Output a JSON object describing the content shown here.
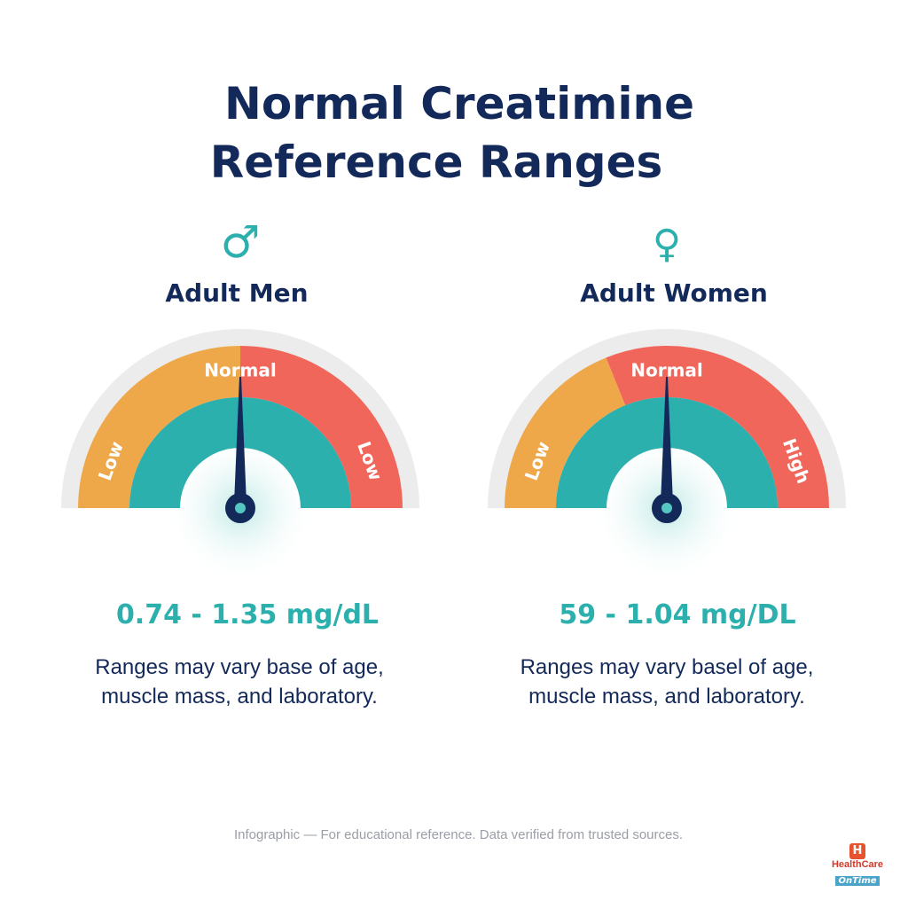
{
  "title": {
    "line1": "Normal Creatimine",
    "line2": "Reference Ranges"
  },
  "colors": {
    "navy": "#13295a",
    "teal": "#2bb0ad",
    "orange": "#eea84a",
    "red": "#f0665a",
    "grey": "#ececec"
  },
  "men": {
    "symbol": "♂",
    "symbol_icon": "male-symbol-icon",
    "label": "Adult Men",
    "gauge": {
      "left": "Low",
      "top": "Normal",
      "right": "Low"
    },
    "range": "0.74 - 1.35 mg/dL",
    "note_line1": "Ranges may vary base of age,",
    "note_line2": "muscle mass, and laboratory."
  },
  "women": {
    "symbol": "♀",
    "symbol_icon": "female-symbol-icon",
    "label": "Adult Women",
    "gauge": {
      "left": "Low",
      "top": "Normal",
      "right": "High"
    },
    "range": "59 - 1.04 mg/DL",
    "note_line1": "Ranges may vary basel of age,",
    "note_line2": "muscle mass, and laboratory."
  },
  "footer": "Infographic — For educational reference. Data verified from trusted sources.",
  "logo": {
    "mark": "H",
    "name": "HealthCare",
    "tagline": "OnTime"
  }
}
